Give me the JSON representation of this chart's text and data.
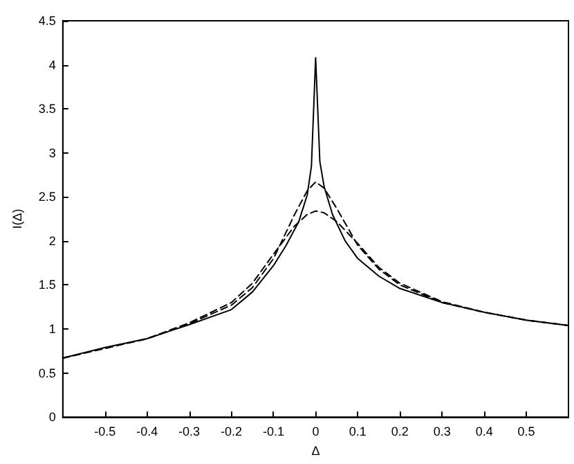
{
  "chart_data": {
    "type": "line",
    "xlabel": "Δ",
    "ylabel": "I(Δ)",
    "xlim": [
      -0.6,
      0.6
    ],
    "xticks": [
      -0.5,
      -0.4,
      -0.3,
      -0.2,
      -0.1,
      0,
      0.1,
      0.2,
      0.3,
      0.4,
      0.5
    ],
    "ylim": [
      0,
      4.5
    ],
    "yticks": [
      0,
      0.5,
      1,
      1.5,
      2,
      2.5,
      3,
      3.5,
      4,
      4.5
    ],
    "grid": false,
    "marker": "none",
    "series": [
      {
        "color": "#000000",
        "line_style": "solid",
        "x": [
          -0.6,
          -0.5,
          -0.4,
          -0.3,
          -0.2,
          -0.15,
          -0.1,
          -0.07,
          -0.04,
          -0.02,
          -0.01,
          0,
          0.01,
          0.02,
          0.04,
          0.07,
          0.1,
          0.15,
          0.2,
          0.3,
          0.4,
          0.5,
          0.6
        ],
        "values": [
          0.67,
          0.79,
          0.89,
          1.05,
          1.22,
          1.42,
          1.72,
          1.95,
          2.22,
          2.52,
          2.85,
          4.08,
          2.9,
          2.62,
          2.3,
          2.0,
          1.8,
          1.6,
          1.46,
          1.3,
          1.19,
          1.1,
          1.04
        ]
      },
      {
        "color": "#000000",
        "line_style": "dashed",
        "x": [
          -0.6,
          -0.4,
          -0.3,
          -0.2,
          -0.15,
          -0.1,
          -0.05,
          -0.02,
          0,
          0.02,
          0.05,
          0.1,
          0.15,
          0.2,
          0.3,
          0.4,
          0.5,
          0.6
        ],
        "values": [
          0.67,
          0.89,
          1.06,
          1.27,
          1.47,
          1.8,
          2.3,
          2.57,
          2.67,
          2.6,
          2.37,
          1.95,
          1.68,
          1.5,
          1.3,
          1.19,
          1.1,
          1.04
        ]
      },
      {
        "color": "#000000",
        "line_style": "dashed",
        "x": [
          -0.6,
          -0.4,
          -0.3,
          -0.2,
          -0.15,
          -0.1,
          -0.05,
          -0.02,
          0,
          0.02,
          0.05,
          0.1,
          0.15,
          0.2,
          0.3,
          0.4,
          0.5,
          0.6
        ],
        "values": [
          0.67,
          0.89,
          1.07,
          1.3,
          1.52,
          1.85,
          2.17,
          2.3,
          2.34,
          2.32,
          2.22,
          1.97,
          1.7,
          1.52,
          1.31,
          1.19,
          1.1,
          1.04
        ]
      }
    ]
  }
}
